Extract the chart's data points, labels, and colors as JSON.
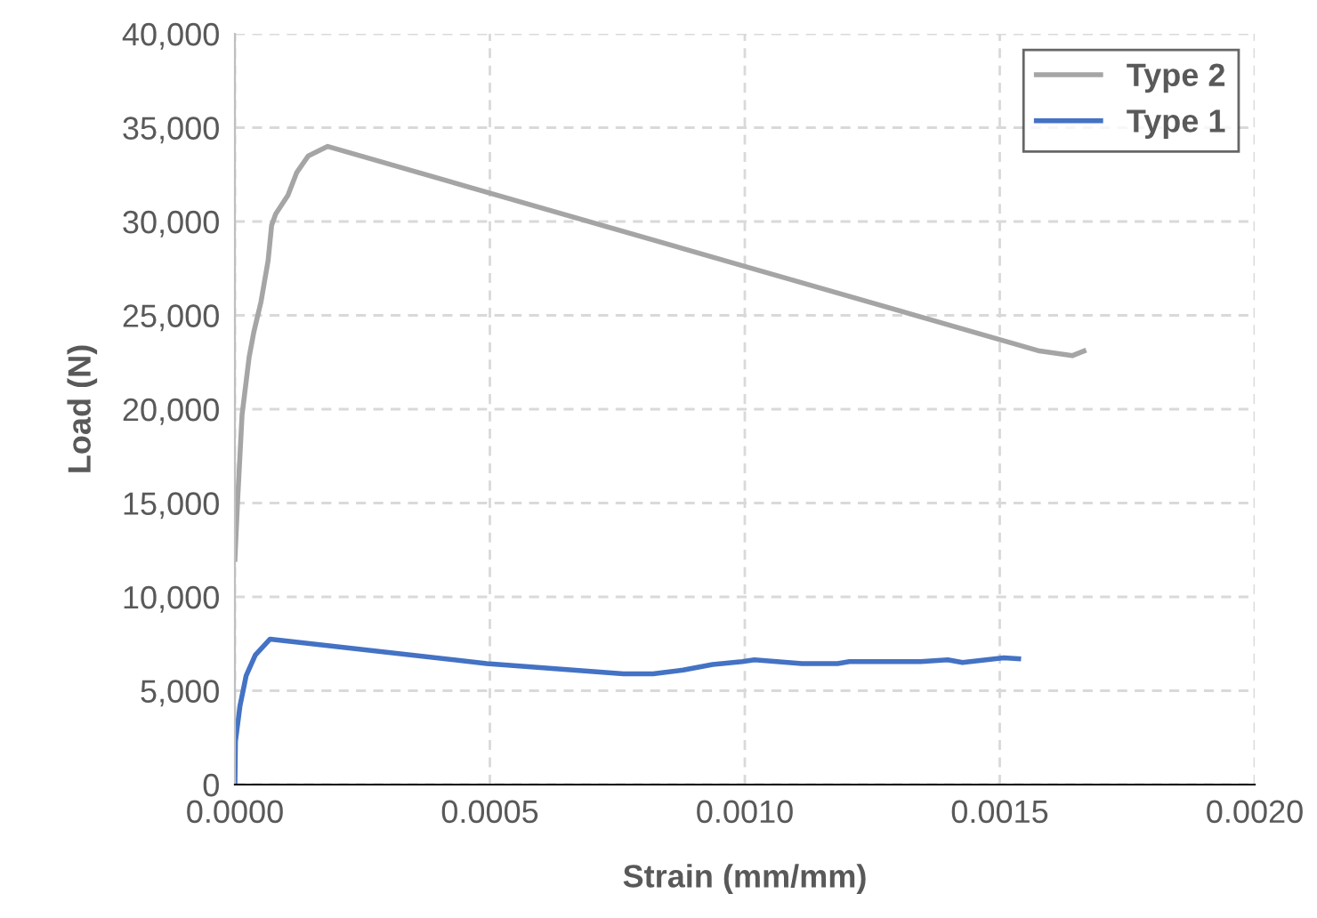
{
  "chart_data": {
    "type": "line",
    "xlabel": "Strain (mm/mm)",
    "ylabel": "Load (N)",
    "xlim": [
      0,
      0.002
    ],
    "xticks": [
      {
        "value": 0,
        "label": "0.0000"
      },
      {
        "value": 0.0005,
        "label": "0.0005"
      },
      {
        "value": 0.001,
        "label": "0.0010"
      },
      {
        "value": 0.0015,
        "label": "0.0015"
      },
      {
        "value": 0.002,
        "label": "0.0020"
      }
    ],
    "ylim": [
      0,
      40000
    ],
    "yticks": [
      {
        "value": 0,
        "label": "0"
      },
      {
        "value": 5000,
        "label": "5,000"
      },
      {
        "value": 10000,
        "label": "10,000"
      },
      {
        "value": 15000,
        "label": "15,000"
      },
      {
        "value": 20000,
        "label": "20,000"
      },
      {
        "value": 25000,
        "label": "25,000"
      },
      {
        "value": 30000,
        "label": "30,000"
      },
      {
        "value": 35000,
        "label": "35,000"
      },
      {
        "value": 40000,
        "label": "40,000"
      }
    ],
    "grid": true,
    "legend": "top right",
    "marker": "none",
    "line_style": "solid",
    "series": [
      {
        "name": "Type 2",
        "color": "#a5a5a5",
        "x": [
          0,
          5e-06,
          1.4e-05,
          2.8e-05,
          3.7e-05,
          5.1e-05,
          6.5e-05,
          7.2e-05,
          8e-05,
          0.000104,
          0.000121,
          0.000144,
          0.000182,
          0.001001,
          0.001578,
          0.001642,
          0.001665
        ],
        "values": [
          12000,
          15000,
          19700,
          22800,
          24100,
          25700,
          27900,
          29800,
          30400,
          31400,
          32600,
          33500,
          34000,
          27600,
          23100,
          22850,
          23100
        ]
      },
      {
        "name": "Type 1",
        "color": "#4472c4",
        "x": [
          0,
          1e-06,
          1e-05,
          2.2e-05,
          4e-05,
          6.9e-05,
          0.000494,
          0.000762,
          0.00082,
          0.000879,
          0.000937,
          0.000995,
          0.001019,
          0.001112,
          0.001182,
          0.001205,
          0.001345,
          0.001398,
          0.001427,
          0.001508,
          0.001537
        ],
        "values": [
          0,
          2300,
          4200,
          5800,
          6900,
          7750,
          6450,
          5900,
          5900,
          6100,
          6400,
          6550,
          6650,
          6450,
          6450,
          6550,
          6550,
          6650,
          6500,
          6750,
          6700
        ]
      }
    ]
  }
}
